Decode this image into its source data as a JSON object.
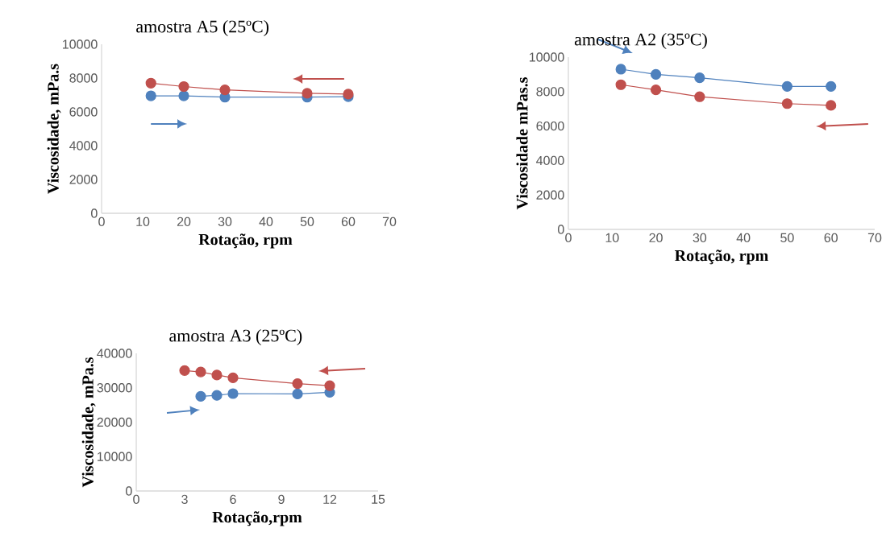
{
  "chart_data": [
    {
      "type": "line",
      "title": "amostra A5 (25ºC)",
      "xlabel": "Rotação, rpm",
      "ylabel": "Viscosidade, mPa.s",
      "marker": "circle",
      "xlim": [
        0,
        70
      ],
      "ylim": [
        0,
        10000
      ],
      "xticks": [
        0,
        10,
        20,
        30,
        40,
        50,
        60,
        70
      ],
      "yticks": [
        0,
        2000,
        4000,
        6000,
        8000,
        10000
      ],
      "x": [
        12,
        20,
        30,
        50,
        60
      ],
      "series": [
        {
          "color": "#4f81bd",
          "values": [
            6950,
            6950,
            6870,
            6870,
            6900
          ]
        },
        {
          "color": "#c0504d",
          "values": [
            7700,
            7500,
            7300,
            7100,
            7050
          ]
        }
      ]
    },
    {
      "type": "line",
      "title": "amostra A2 (35ºC)",
      "xlabel": "Rotação, rpm",
      "ylabel": "Viscosidade mPas.s",
      "marker": "circle",
      "xlim": [
        0,
        70
      ],
      "ylim": [
        0,
        10000
      ],
      "xticks": [
        0,
        10,
        20,
        30,
        40,
        50,
        60,
        70
      ],
      "yticks": [
        0,
        2000,
        4000,
        6000,
        8000,
        10000
      ],
      "x": [
        12,
        20,
        30,
        50,
        60
      ],
      "series": [
        {
          "color": "#4f81bd",
          "values": [
            9300,
            9000,
            8800,
            8300,
            8300
          ]
        },
        {
          "color": "#c0504d",
          "values": [
            8400,
            8100,
            7700,
            7300,
            7200
          ]
        }
      ]
    },
    {
      "type": "line",
      "title": "amostra A3 (25ºC)",
      "xlabel": "Rotação,rpm",
      "ylabel": "Viscosidade, mPa.s",
      "marker": "circle",
      "xlim": [
        0,
        15
      ],
      "ylim": [
        0,
        40000
      ],
      "xticks": [
        0,
        3,
        6,
        9,
        12,
        15
      ],
      "yticks": [
        0,
        10000,
        20000,
        30000,
        40000
      ],
      "series": [
        {
          "color": "#4f81bd",
          "x": [
            4,
            5,
            6,
            10,
            12
          ],
          "values": [
            27500,
            27800,
            28300,
            28200,
            28700
          ]
        },
        {
          "color": "#c0504d",
          "x": [
            3,
            4,
            5,
            6,
            10,
            12
          ],
          "values": [
            35000,
            34600,
            33700,
            32900,
            31200,
            30600
          ]
        }
      ]
    }
  ]
}
